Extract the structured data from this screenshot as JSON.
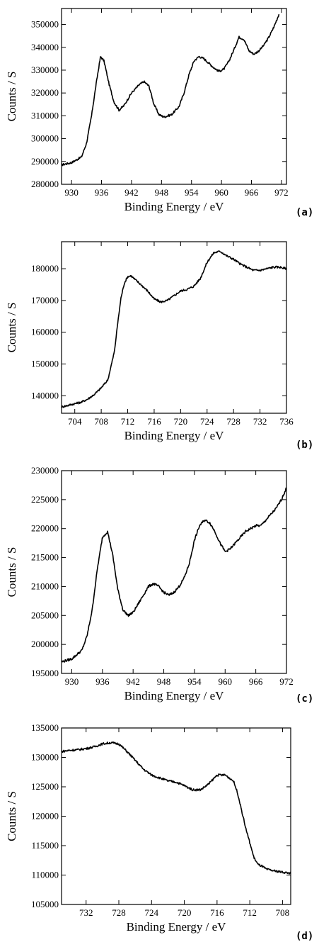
{
  "chart_data": [
    {
      "type": "line",
      "panel_label": "(a)",
      "xlabel": "Binding Energy / eV",
      "ylabel": "Counts / S",
      "xlim": [
        928,
        973
      ],
      "ylim": [
        280000,
        357000
      ],
      "x_reversed": false,
      "xticks": [
        930,
        936,
        942,
        948,
        954,
        960,
        966,
        972
      ],
      "yticks": [
        280000,
        290000,
        300000,
        310000,
        320000,
        330000,
        340000,
        350000
      ],
      "ytick_labels": [
        "280000",
        "290000",
        "300000",
        "310000",
        "320000",
        "330000",
        "340000",
        "350000"
      ],
      "grid": false,
      "series": [
        {
          "x": [
            928,
            930,
            932,
            933,
            934,
            935,
            935.8,
            936.5,
            937.5,
            938.5,
            939.5,
            940.5,
            942,
            943.5,
            944.5,
            945.5,
            946.5,
            947.5,
            948.5,
            950,
            951.5,
            952.5,
            953.5,
            954.5,
            955.5,
            956.5,
            957.5,
            958.5,
            959.5,
            960.5,
            961.5,
            962.5,
            963.5,
            964.5,
            965.5,
            966.5,
            967.5,
            968.5,
            969.5,
            970.5,
            971.5
          ],
          "y": [
            288500,
            289500,
            292000,
            298000,
            310000,
            325000,
            336000,
            334000,
            324000,
            316000,
            312500,
            314500,
            320000,
            323500,
            325000,
            323000,
            315000,
            310500,
            309500,
            310500,
            314000,
            320000,
            328000,
            334000,
            336000,
            335000,
            333000,
            331000,
            329500,
            330500,
            334000,
            339000,
            344500,
            343500,
            338500,
            337000,
            338500,
            341000,
            344500,
            349000,
            354500
          ]
        }
      ]
    },
    {
      "type": "line",
      "panel_label": "(b)",
      "xlabel": "Binding Energy / eV",
      "ylabel": "Counts / S",
      "xlim": [
        702,
        736
      ],
      "ylim": [
        134500,
        188500
      ],
      "x_reversed": false,
      "xticks": [
        704,
        708,
        712,
        716,
        720,
        724,
        728,
        732,
        736
      ],
      "yticks": [
        140000,
        150000,
        160000,
        170000,
        180000
      ],
      "ytick_labels": [
        "140000",
        "150000",
        "160000",
        "170000",
        "180000"
      ],
      "grid": false,
      "series": [
        {
          "x": [
            702,
            703,
            704,
            705,
            706,
            707,
            708,
            709,
            710,
            710.5,
            711,
            711.5,
            712,
            712.5,
            713,
            714,
            715,
            716,
            717,
            718,
            719,
            720,
            721,
            722,
            723,
            724,
            725,
            726,
            727,
            728,
            729,
            730,
            731,
            732,
            733,
            734,
            735,
            736
          ],
          "y": [
            136500,
            137000,
            137500,
            138000,
            139000,
            140500,
            142500,
            145000,
            154000,
            163000,
            171000,
            175500,
            177500,
            177800,
            176800,
            175000,
            173000,
            170500,
            169500,
            170000,
            171500,
            173000,
            173500,
            174500,
            177000,
            182000,
            185000,
            185500,
            184000,
            183000,
            181500,
            180500,
            179500,
            179500,
            180000,
            180500,
            180500,
            180000
          ]
        }
      ]
    },
    {
      "type": "line",
      "panel_label": "(c)",
      "xlabel": "Binding Energy / eV",
      "ylabel": "Counts / S",
      "xlim": [
        928,
        972
      ],
      "ylim": [
        195000,
        230000
      ],
      "x_reversed": false,
      "xticks": [
        930,
        936,
        942,
        948,
        954,
        960,
        966,
        972
      ],
      "yticks": [
        195000,
        200000,
        205000,
        210000,
        215000,
        220000,
        225000,
        230000
      ],
      "ytick_labels": [
        "195000",
        "200000",
        "205000",
        "210000",
        "215000",
        "220000",
        "225000",
        "230000"
      ],
      "grid": false,
      "series": [
        {
          "x": [
            928,
            930,
            932,
            933,
            934,
            935,
            936,
            937,
            938,
            939,
            940,
            941,
            942,
            943,
            944,
            945,
            946,
            947,
            948,
            949,
            950,
            951,
            952,
            953,
            954,
            955,
            956,
            957,
            958,
            959,
            960,
            961,
            962,
            963,
            964,
            965,
            966,
            967,
            968,
            969,
            970,
            971,
            972
          ],
          "y": [
            197000,
            197500,
            199000,
            201500,
            206000,
            213000,
            218500,
            219500,
            215500,
            209500,
            206000,
            205000,
            205500,
            207000,
            208500,
            210000,
            210500,
            210000,
            209000,
            208500,
            209000,
            210000,
            211500,
            214000,
            218000,
            220500,
            221500,
            221000,
            219500,
            217500,
            216000,
            216500,
            217500,
            218500,
            219500,
            220000,
            220500,
            220500,
            221500,
            222500,
            223500,
            225000,
            227000
          ]
        }
      ]
    },
    {
      "type": "line",
      "panel_label": "(d)",
      "xlabel": "Binding Energy / eV",
      "ylabel": "Counts / S",
      "xlim": [
        735,
        707
      ],
      "ylim": [
        105000,
        135000
      ],
      "x_reversed": true,
      "xticks": [
        732,
        728,
        724,
        720,
        716,
        712,
        708
      ],
      "yticks": [
        105000,
        110000,
        115000,
        120000,
        125000,
        130000,
        135000
      ],
      "ytick_labels": [
        "105000",
        "110000",
        "115000",
        "120000",
        "125000",
        "130000",
        "135000"
      ],
      "grid": false,
      "series": [
        {
          "x": [
            735,
            734,
            733,
            732,
            731,
            730,
            729,
            728,
            727,
            726,
            725,
            724,
            723,
            722,
            721,
            720,
            719,
            718,
            717,
            716,
            715,
            714,
            713.5,
            713,
            712.5,
            712,
            711.5,
            711,
            710.5,
            710,
            709,
            708,
            707
          ],
          "y": [
            131000,
            131200,
            131300,
            131500,
            131800,
            132300,
            132500,
            132300,
            131000,
            129500,
            128000,
            127000,
            126500,
            126000,
            125800,
            125200,
            124500,
            124500,
            125500,
            127000,
            127000,
            126000,
            124000,
            121000,
            118000,
            115500,
            113000,
            111800,
            111500,
            111000,
            110700,
            110500,
            110300
          ]
        }
      ]
    }
  ]
}
